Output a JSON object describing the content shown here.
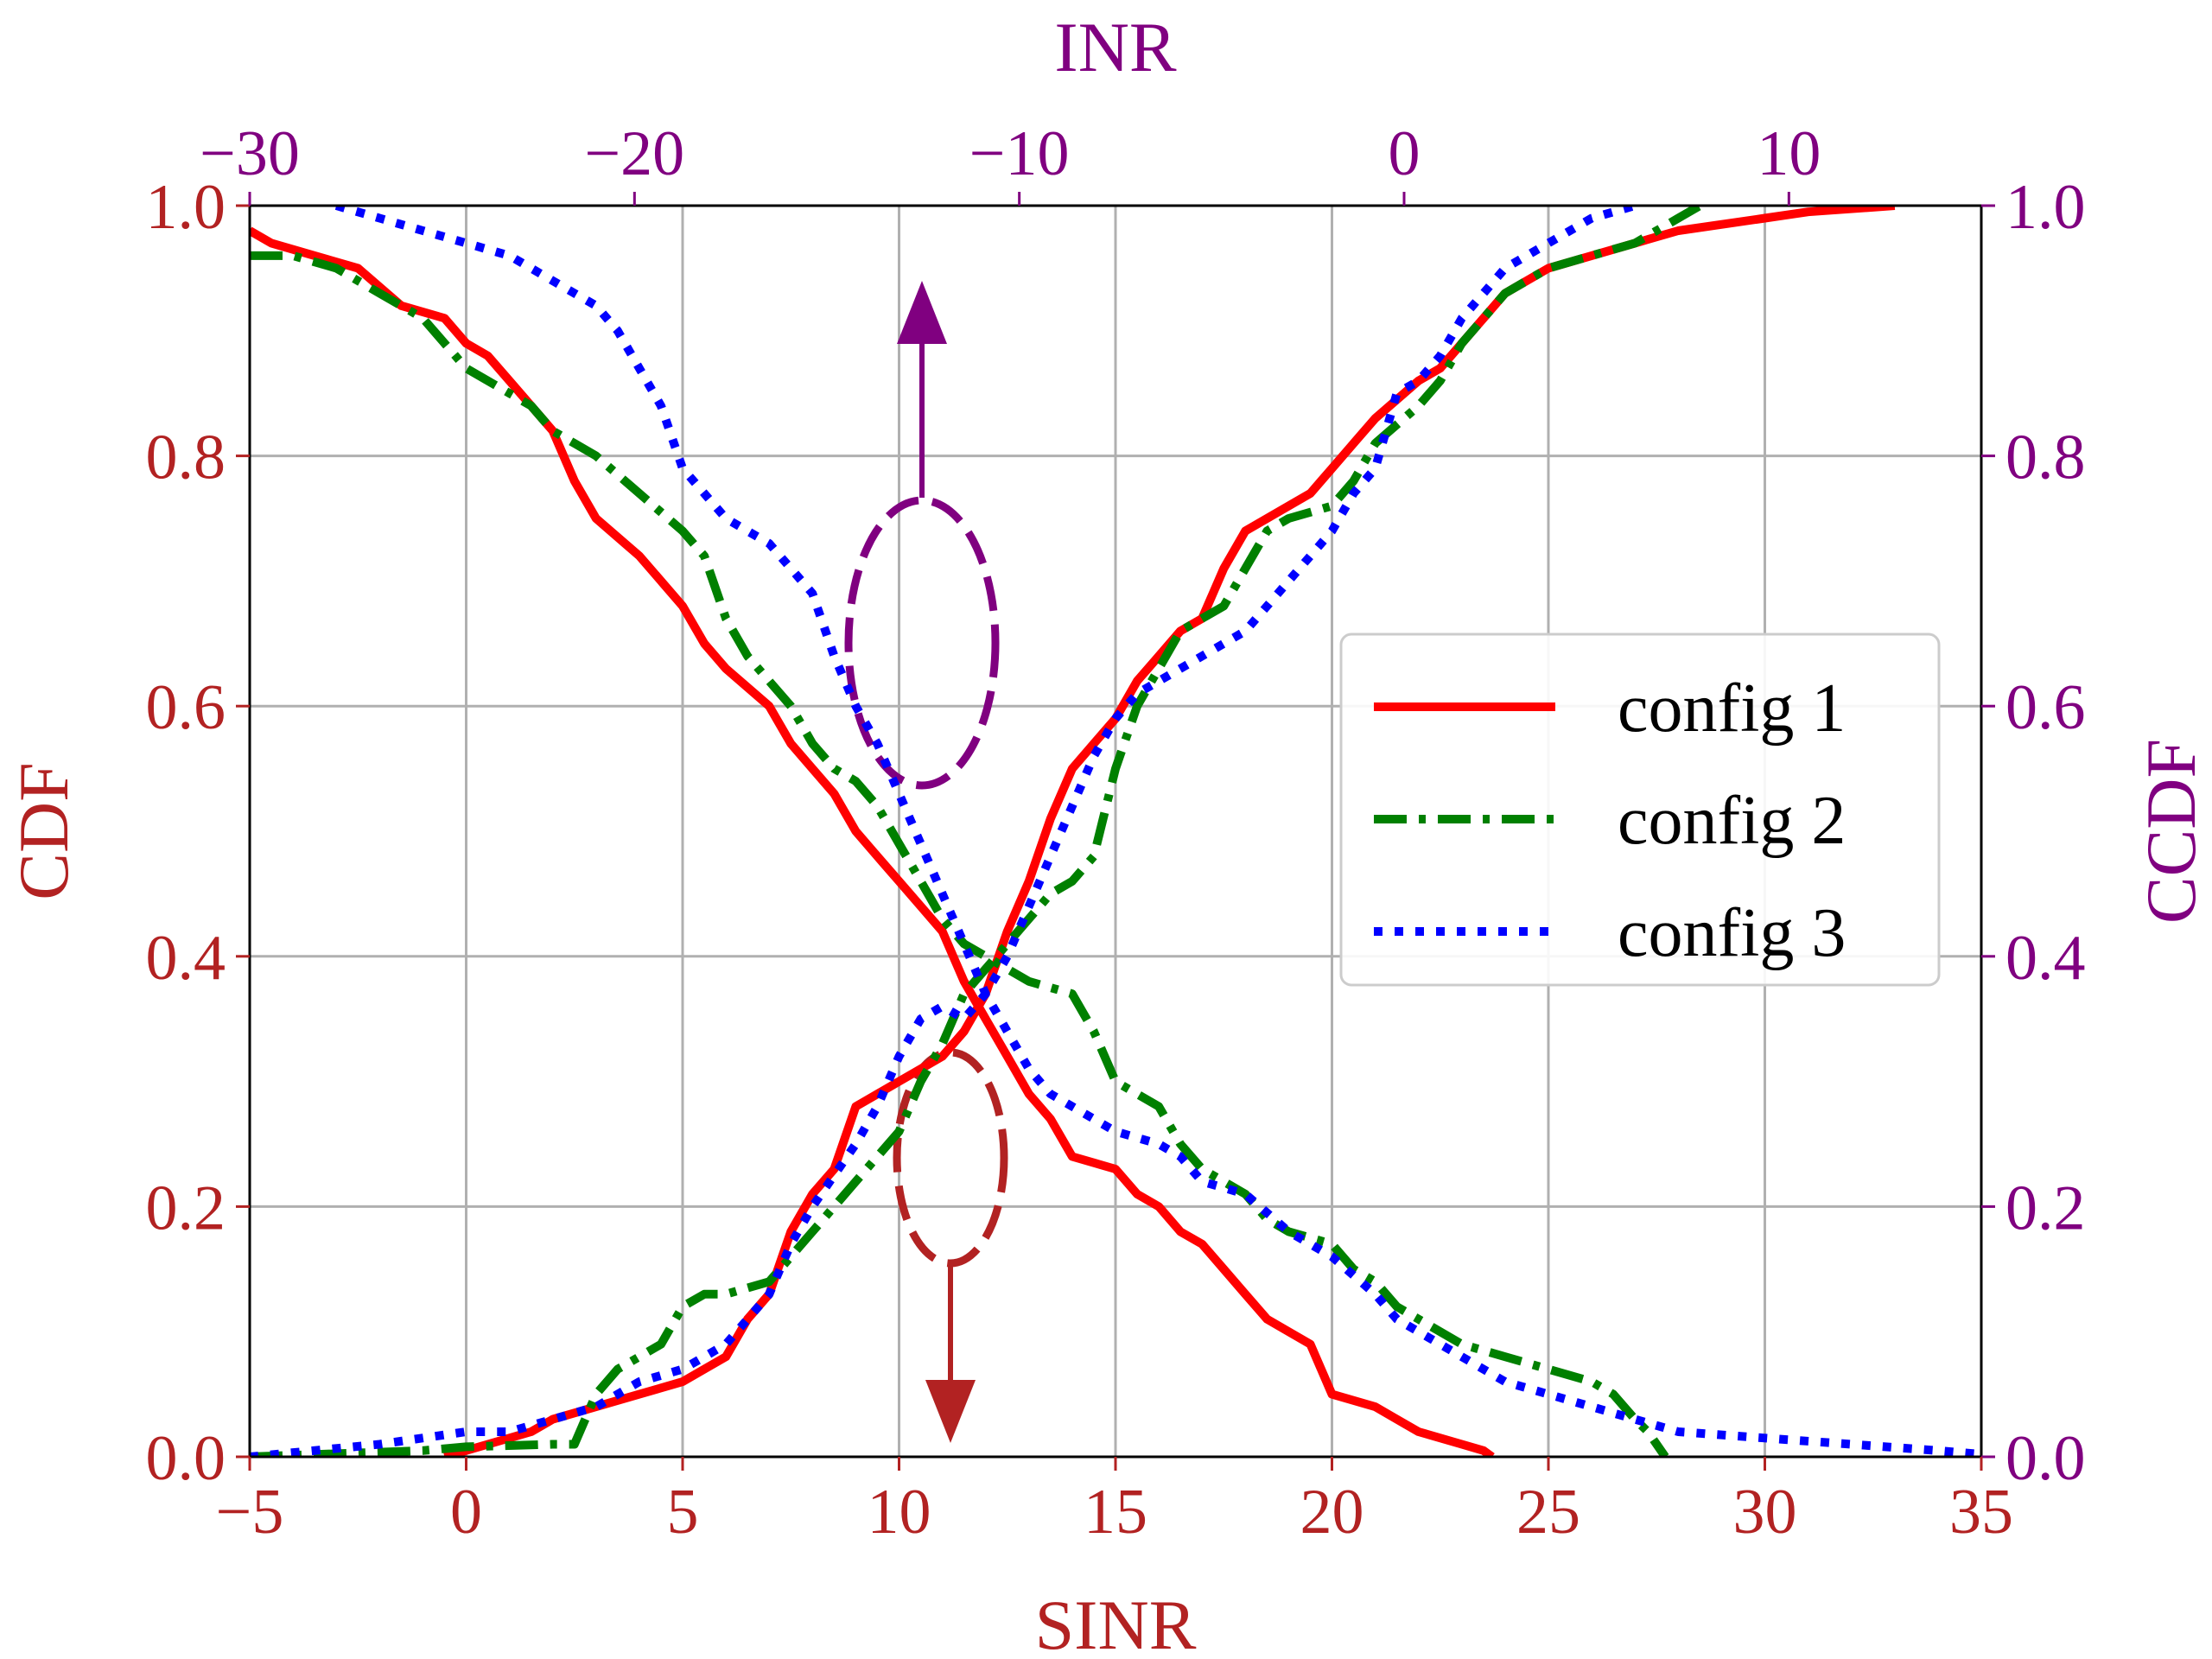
{
  "chart_data": {
    "type": "line",
    "xlabel": "SINR",
    "x2label": "INR",
    "ylabel": "CDF",
    "y2label": "CCDF",
    "xlim": [
      -5,
      35
    ],
    "x2lim": [
      -30,
      15
    ],
    "ylim": [
      0,
      1
    ],
    "xticks": [
      "−5",
      "0",
      "5",
      "10",
      "15",
      "20",
      "25",
      "30",
      "35"
    ],
    "xtick_values": [
      -5,
      0,
      5,
      10,
      15,
      20,
      25,
      30,
      35
    ],
    "x2ticks": [
      "−30",
      "−20",
      "−10",
      "0",
      "10"
    ],
    "x2tick_values": [
      -30,
      -20,
      -10,
      0,
      10
    ],
    "yticks": [
      "0.0",
      "0.2",
      "0.4",
      "0.6",
      "0.8",
      "1.0"
    ],
    "ytick_values": [
      0,
      0.2,
      0.4,
      0.6,
      0.8,
      1.0
    ],
    "grid": true,
    "legend_position": "center-right",
    "colors": {
      "left_axis": "#b22222",
      "right_axis": "#800080",
      "config1": "#ff0000",
      "config2": "#008000",
      "config3": "#0000ff"
    },
    "series": [
      {
        "name": "config 1",
        "style": "solid",
        "cdf": [
          [
            -0.5,
            0
          ],
          [
            1.5,
            0.02
          ],
          [
            2,
            0.03
          ],
          [
            3,
            0.04
          ],
          [
            4,
            0.05
          ],
          [
            5,
            0.06
          ],
          [
            5.5,
            0.07
          ],
          [
            6,
            0.08
          ],
          [
            6.5,
            0.11
          ],
          [
            7,
            0.13
          ],
          [
            7.5,
            0.18
          ],
          [
            8,
            0.21
          ],
          [
            8.5,
            0.23
          ],
          [
            9,
            0.28
          ],
          [
            10,
            0.3
          ],
          [
            10.5,
            0.31
          ],
          [
            11,
            0.32
          ],
          [
            11.5,
            0.34
          ],
          [
            12,
            0.37
          ],
          [
            12.5,
            0.42
          ],
          [
            13,
            0.46
          ],
          [
            13.5,
            0.51
          ],
          [
            14,
            0.55
          ],
          [
            14.5,
            0.57
          ],
          [
            15,
            0.59
          ],
          [
            15.5,
            0.62
          ],
          [
            16,
            0.64
          ],
          [
            16.5,
            0.66
          ],
          [
            17,
            0.67
          ],
          [
            17.5,
            0.71
          ],
          [
            18,
            0.74
          ],
          [
            19,
            0.76
          ],
          [
            19.5,
            0.77
          ],
          [
            20,
            0.79
          ],
          [
            20.5,
            0.81
          ],
          [
            21,
            0.83
          ],
          [
            22,
            0.86
          ],
          [
            22.5,
            0.87
          ],
          [
            23,
            0.89
          ],
          [
            23.5,
            0.91
          ],
          [
            24,
            0.93
          ],
          [
            25,
            0.95
          ],
          [
            26,
            0.96
          ],
          [
            27,
            0.97
          ],
          [
            28,
            0.98
          ],
          [
            30,
            0.99
          ],
          [
            31,
            0.995
          ],
          [
            33,
            1.0
          ]
        ],
        "ccdf": [
          [
            -5,
            0.98
          ],
          [
            -4.5,
            0.97
          ],
          [
            -3.5,
            0.96
          ],
          [
            -2.5,
            0.95
          ],
          [
            -1.5,
            0.92
          ],
          [
            -0.5,
            0.91
          ],
          [
            0,
            0.89
          ],
          [
            0.5,
            0.88
          ],
          [
            1,
            0.86
          ],
          [
            1.5,
            0.84
          ],
          [
            2,
            0.82
          ],
          [
            2.5,
            0.78
          ],
          [
            3,
            0.75
          ],
          [
            4,
            0.72
          ],
          [
            4.5,
            0.7
          ],
          [
            5,
            0.68
          ],
          [
            5.5,
            0.65
          ],
          [
            6,
            0.63
          ],
          [
            7,
            0.6
          ],
          [
            7.5,
            0.57
          ],
          [
            8,
            0.55
          ],
          [
            8.5,
            0.53
          ],
          [
            9,
            0.5
          ],
          [
            9.5,
            0.48
          ],
          [
            10,
            0.46
          ],
          [
            10.5,
            0.44
          ],
          [
            11,
            0.42
          ],
          [
            11.5,
            0.38
          ],
          [
            12,
            0.35
          ],
          [
            12.5,
            0.32
          ],
          [
            13,
            0.29
          ],
          [
            13.5,
            0.27
          ],
          [
            14,
            0.24
          ],
          [
            15,
            0.23
          ],
          [
            15.5,
            0.21
          ],
          [
            16,
            0.2
          ],
          [
            16.5,
            0.18
          ],
          [
            17,
            0.17
          ],
          [
            17.5,
            0.15
          ],
          [
            18,
            0.13
          ],
          [
            18.5,
            0.11
          ],
          [
            19,
            0.1
          ],
          [
            19.5,
            0.09
          ],
          [
            20,
            0.05
          ],
          [
            21,
            0.04
          ],
          [
            21.5,
            0.03
          ],
          [
            22,
            0.02
          ],
          [
            23,
            0.01
          ],
          [
            23.5,
            0.005
          ],
          [
            23.7,
            0
          ]
        ]
      },
      {
        "name": "config 2",
        "style": "dashdot",
        "cdf": [
          [
            -5,
            0
          ],
          [
            -1,
            0.005
          ],
          [
            0,
            0.008
          ],
          [
            2,
            0.01
          ],
          [
            2.5,
            0.01
          ],
          [
            3,
            0.05
          ],
          [
            3.5,
            0.07
          ],
          [
            4,
            0.08
          ],
          [
            4.5,
            0.09
          ],
          [
            5,
            0.12
          ],
          [
            5.5,
            0.13
          ],
          [
            6,
            0.13
          ],
          [
            7,
            0.14
          ],
          [
            7.5,
            0.16
          ],
          [
            8,
            0.18
          ],
          [
            8.5,
            0.2
          ],
          [
            9,
            0.22
          ],
          [
            9.5,
            0.24
          ],
          [
            10,
            0.26
          ],
          [
            10.5,
            0.3
          ],
          [
            11,
            0.33
          ],
          [
            11.5,
            0.37
          ],
          [
            12,
            0.39
          ],
          [
            12.5,
            0.41
          ],
          [
            13,
            0.43
          ],
          [
            13.5,
            0.45
          ],
          [
            14,
            0.46
          ],
          [
            14.5,
            0.48
          ],
          [
            15,
            0.55
          ],
          [
            15.5,
            0.6
          ],
          [
            16,
            0.63
          ],
          [
            16.5,
            0.66
          ],
          [
            17,
            0.67
          ],
          [
            17.5,
            0.68
          ],
          [
            18,
            0.71
          ],
          [
            18.5,
            0.74
          ],
          [
            19,
            0.75
          ],
          [
            20,
            0.76
          ],
          [
            20.5,
            0.78
          ],
          [
            21,
            0.81
          ],
          [
            22,
            0.84
          ],
          [
            22.5,
            0.86
          ],
          [
            23,
            0.89
          ],
          [
            23.5,
            0.91
          ],
          [
            24,
            0.93
          ],
          [
            25,
            0.95
          ],
          [
            26,
            0.96
          ],
          [
            27,
            0.97
          ],
          [
            28,
            0.99
          ],
          [
            28.5,
            1.0
          ]
        ],
        "ccdf": [
          [
            -5,
            0.96
          ],
          [
            -4,
            0.96
          ],
          [
            -3,
            0.95
          ],
          [
            -2,
            0.93
          ],
          [
            -1,
            0.91
          ],
          [
            -0.5,
            0.89
          ],
          [
            0,
            0.87
          ],
          [
            1,
            0.85
          ],
          [
            1.5,
            0.84
          ],
          [
            2,
            0.82
          ],
          [
            2.5,
            0.81
          ],
          [
            3,
            0.8
          ],
          [
            4,
            0.77
          ],
          [
            5,
            0.74
          ],
          [
            5.5,
            0.72
          ],
          [
            6,
            0.67
          ],
          [
            6.5,
            0.64
          ],
          [
            7,
            0.62
          ],
          [
            7.5,
            0.6
          ],
          [
            8,
            0.57
          ],
          [
            8.5,
            0.55
          ],
          [
            9,
            0.54
          ],
          [
            9.5,
            0.52
          ],
          [
            10,
            0.49
          ],
          [
            10.5,
            0.46
          ],
          [
            11,
            0.43
          ],
          [
            11.5,
            0.41
          ],
          [
            12,
            0.4
          ],
          [
            12.5,
            0.39
          ],
          [
            13,
            0.38
          ],
          [
            14,
            0.37
          ],
          [
            14.5,
            0.34
          ],
          [
            15,
            0.3
          ],
          [
            16,
            0.28
          ],
          [
            16.5,
            0.25
          ],
          [
            17,
            0.23
          ],
          [
            18,
            0.21
          ],
          [
            18.5,
            0.19
          ],
          [
            19,
            0.18
          ],
          [
            20,
            0.17
          ],
          [
            20.5,
            0.15
          ],
          [
            21,
            0.14
          ],
          [
            21.5,
            0.12
          ],
          [
            22,
            0.11
          ],
          [
            23,
            0.09
          ],
          [
            24,
            0.08
          ],
          [
            25,
            0.07
          ],
          [
            26,
            0.06
          ],
          [
            26.5,
            0.05
          ],
          [
            27,
            0.03
          ],
          [
            27.3,
            0.02
          ],
          [
            27.7,
            0
          ]
        ]
      },
      {
        "name": "config 3",
        "style": "dotted",
        "cdf": [
          [
            -5,
            0
          ],
          [
            -2,
            0.01
          ],
          [
            0,
            0.02
          ],
          [
            1,
            0.02
          ],
          [
            2,
            0.03
          ],
          [
            3,
            0.04
          ],
          [
            4,
            0.06
          ],
          [
            5,
            0.07
          ],
          [
            5.5,
            0.08
          ],
          [
            6,
            0.09
          ],
          [
            7,
            0.13
          ],
          [
            7.5,
            0.17
          ],
          [
            8,
            0.2
          ],
          [
            9,
            0.25
          ],
          [
            9.5,
            0.28
          ],
          [
            10,
            0.32
          ],
          [
            10.5,
            0.35
          ],
          [
            11,
            0.36
          ],
          [
            11.5,
            0.35
          ],
          [
            12,
            0.37
          ],
          [
            12.5,
            0.4
          ],
          [
            13,
            0.44
          ],
          [
            13.5,
            0.48
          ],
          [
            14,
            0.52
          ],
          [
            14.5,
            0.56
          ],
          [
            15,
            0.59
          ],
          [
            15.5,
            0.61
          ],
          [
            16,
            0.62
          ],
          [
            16.5,
            0.63
          ],
          [
            17,
            0.64
          ],
          [
            18,
            0.66
          ],
          [
            18.5,
            0.68
          ],
          [
            19,
            0.7
          ],
          [
            19.5,
            0.72
          ],
          [
            20,
            0.74
          ],
          [
            20.5,
            0.77
          ],
          [
            21,
            0.79
          ],
          [
            21.5,
            0.85
          ],
          [
            22,
            0.86
          ],
          [
            22.5,
            0.88
          ],
          [
            23,
            0.91
          ],
          [
            23.5,
            0.93
          ],
          [
            24,
            0.95
          ],
          [
            25,
            0.97
          ],
          [
            26,
            0.99
          ],
          [
            27,
            1.0
          ]
        ],
        "ccdf": [
          [
            -3,
            1.0
          ],
          [
            -2,
            0.99
          ],
          [
            -1,
            0.98
          ],
          [
            0,
            0.97
          ],
          [
            1,
            0.96
          ],
          [
            2,
            0.94
          ],
          [
            3,
            0.92
          ],
          [
            3.5,
            0.9
          ],
          [
            4,
            0.87
          ],
          [
            4.5,
            0.84
          ],
          [
            5,
            0.79
          ],
          [
            6,
            0.75
          ],
          [
            6.5,
            0.74
          ],
          [
            7,
            0.73
          ],
          [
            7.5,
            0.71
          ],
          [
            8,
            0.69
          ],
          [
            8.5,
            0.64
          ],
          [
            9,
            0.6
          ],
          [
            9.5,
            0.57
          ],
          [
            10,
            0.53
          ],
          [
            10.5,
            0.49
          ],
          [
            11,
            0.45
          ],
          [
            11.5,
            0.41
          ],
          [
            12,
            0.37
          ],
          [
            12.5,
            0.34
          ],
          [
            13,
            0.31
          ],
          [
            13.5,
            0.29
          ],
          [
            14,
            0.28
          ],
          [
            15,
            0.26
          ],
          [
            16,
            0.25
          ],
          [
            16.5,
            0.24
          ],
          [
            17,
            0.22
          ],
          [
            18,
            0.21
          ],
          [
            19,
            0.18
          ],
          [
            20,
            0.16
          ],
          [
            21,
            0.13
          ],
          [
            21.5,
            0.11
          ],
          [
            22,
            0.1
          ],
          [
            23,
            0.08
          ],
          [
            24,
            0.06
          ],
          [
            25,
            0.05
          ],
          [
            26,
            0.04
          ],
          [
            27,
            0.03
          ],
          [
            28,
            0.02
          ],
          [
            30,
            0.015
          ],
          [
            32,
            0.01
          ],
          [
            34,
            0.005
          ],
          [
            35,
            0.002
          ]
        ]
      }
    ]
  }
}
